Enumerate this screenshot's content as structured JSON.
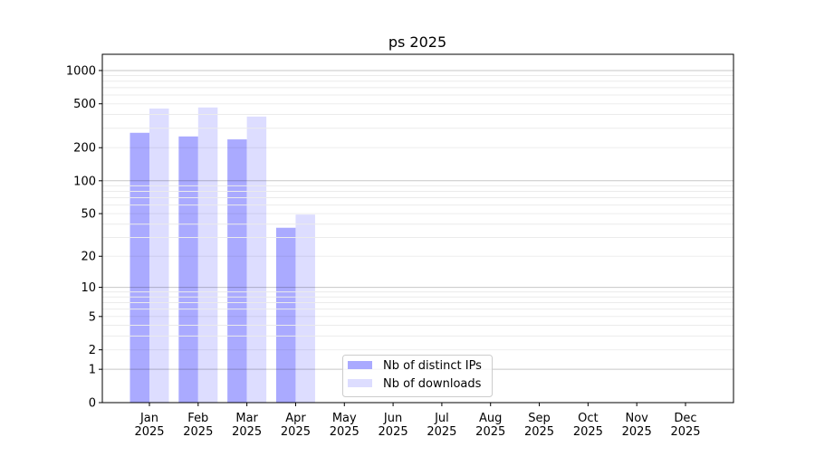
{
  "chart_data": {
    "type": "bar",
    "title": "ps 2025",
    "xlabel": "",
    "ylabel": "",
    "y_scale": "log(1+y)",
    "ylim": [
      0,
      1400
    ],
    "yticks": [
      0,
      1,
      2,
      5,
      10,
      20,
      50,
      100,
      200,
      500,
      1000
    ],
    "grid": true,
    "legend_position": "bottom-center",
    "categories": [
      "Jan\n2025",
      "Feb\n2025",
      "Mar\n2025",
      "Apr\n2025",
      "May\n2025",
      "Jun\n2025",
      "Jul\n2025",
      "Aug\n2025",
      "Sep\n2025",
      "Oct\n2025",
      "Nov\n2025",
      "Dec\n2025"
    ],
    "series": [
      {
        "name": "Nb of distinct IPs",
        "color": "#aaaaff",
        "values": [
          273,
          253,
          238,
          37,
          0,
          0,
          0,
          0,
          0,
          0,
          0,
          0
        ]
      },
      {
        "name": "Nb of downloads",
        "color": "#ddddff",
        "values": [
          453,
          463,
          383,
          49,
          0,
          0,
          0,
          0,
          0,
          0,
          0,
          0
        ]
      }
    ]
  }
}
